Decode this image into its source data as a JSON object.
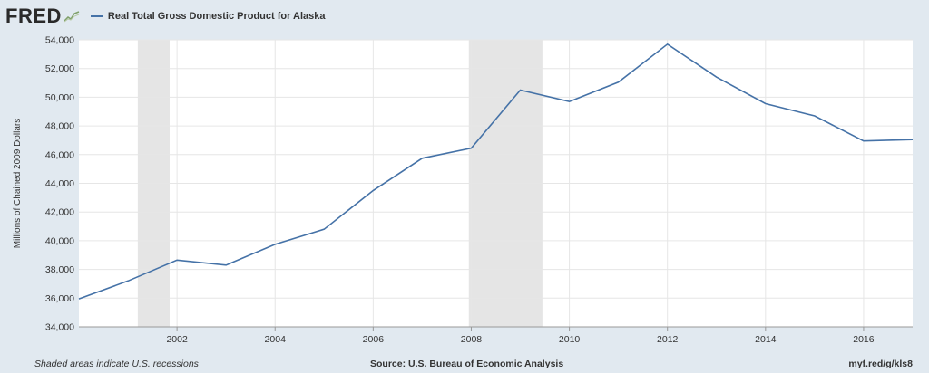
{
  "header": {
    "logo": "FRED",
    "series_label": "Real Total Gross Domestic Product for Alaska"
  },
  "footer": {
    "recession_note": "Shaded areas indicate U.S. recessions",
    "source": "Source: U.S. Bureau of Economic Analysis",
    "short_url": "myf.red/g/kls8"
  },
  "colors": {
    "line": "#4572a7",
    "plot_background": "#ffffff",
    "page_background": "#e1e9f0",
    "recession_band": "#e5e5e5",
    "grid": "#e6e6e6"
  },
  "chart_data": {
    "type": "line",
    "title": "",
    "xlabel": "",
    "ylabel": "Millions of Chained 2009 Dollars",
    "xlim": [
      2000,
      2017
    ],
    "ylim": [
      34000,
      54000
    ],
    "x_ticks": [
      2002,
      2004,
      2006,
      2008,
      2010,
      2012,
      2014,
      2016
    ],
    "y_ticks": [
      34000,
      36000,
      38000,
      40000,
      42000,
      44000,
      46000,
      48000,
      50000,
      52000,
      54000
    ],
    "y_tick_labels": [
      "34,000",
      "36,000",
      "38,000",
      "40,000",
      "42,000",
      "44,000",
      "46,000",
      "48,000",
      "50,000",
      "52,000",
      "54,000"
    ],
    "grid": true,
    "legend_position": "top-left",
    "recessions": [
      {
        "start": 2001.2,
        "end": 2001.85
      },
      {
        "start": 2007.95,
        "end": 2009.45
      }
    ],
    "series": [
      {
        "name": "Real Total Gross Domestic Product for Alaska",
        "x": [
          2000,
          2001,
          2002,
          2003,
          2004,
          2005,
          2006,
          2007,
          2008,
          2009,
          2010,
          2011,
          2012,
          2013,
          2014,
          2015,
          2016,
          2017
        ],
        "values": [
          35950,
          37200,
          38650,
          38300,
          39750,
          40800,
          43500,
          45750,
          46450,
          50500,
          49700,
          51050,
          53700,
          51400,
          49550,
          48700,
          46950,
          47050
        ]
      }
    ]
  }
}
